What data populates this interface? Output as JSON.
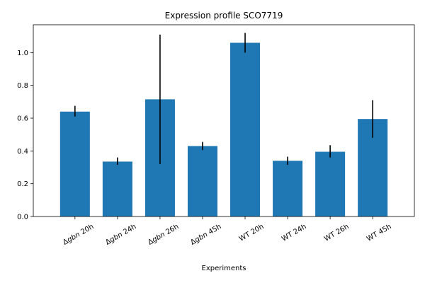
{
  "chart_data": {
    "type": "bar",
    "title": "Expression profile SCO7719",
    "xlabel": "Experiments",
    "ylabel": "",
    "categories": [
      {
        "prefix": "Δ",
        "italic": "gbn",
        "suffix": " 20h"
      },
      {
        "prefix": "Δ",
        "italic": "gbn",
        "suffix": " 24h"
      },
      {
        "prefix": "Δ",
        "italic": "gbn",
        "suffix": " 26h"
      },
      {
        "prefix": "Δ",
        "italic": "gbn",
        "suffix": " 45h"
      },
      {
        "prefix": "WT 20h",
        "italic": "",
        "suffix": ""
      },
      {
        "prefix": "WT 24h",
        "italic": "",
        "suffix": ""
      },
      {
        "prefix": "WT 26h",
        "italic": "",
        "suffix": ""
      },
      {
        "prefix": "WT 45h",
        "italic": "",
        "suffix": ""
      }
    ],
    "values": [
      0.64,
      0.335,
      0.715,
      0.43,
      1.06,
      0.34,
      0.395,
      0.595
    ],
    "error_low": [
      0.61,
      0.315,
      0.32,
      0.405,
      1.0,
      0.315,
      0.36,
      0.48
    ],
    "error_high": [
      0.675,
      0.36,
      1.11,
      0.455,
      1.12,
      0.365,
      0.435,
      0.71
    ],
    "ylim": [
      0,
      1.17
    ],
    "yticks": [
      "0.0",
      "0.2",
      "0.4",
      "0.6",
      "0.8",
      "1.0"
    ],
    "ytick_values": [
      0.0,
      0.2,
      0.4,
      0.6,
      0.8,
      1.0
    ],
    "grid": false,
    "bar_color": "#1f77b4",
    "error_color": "#000000"
  }
}
